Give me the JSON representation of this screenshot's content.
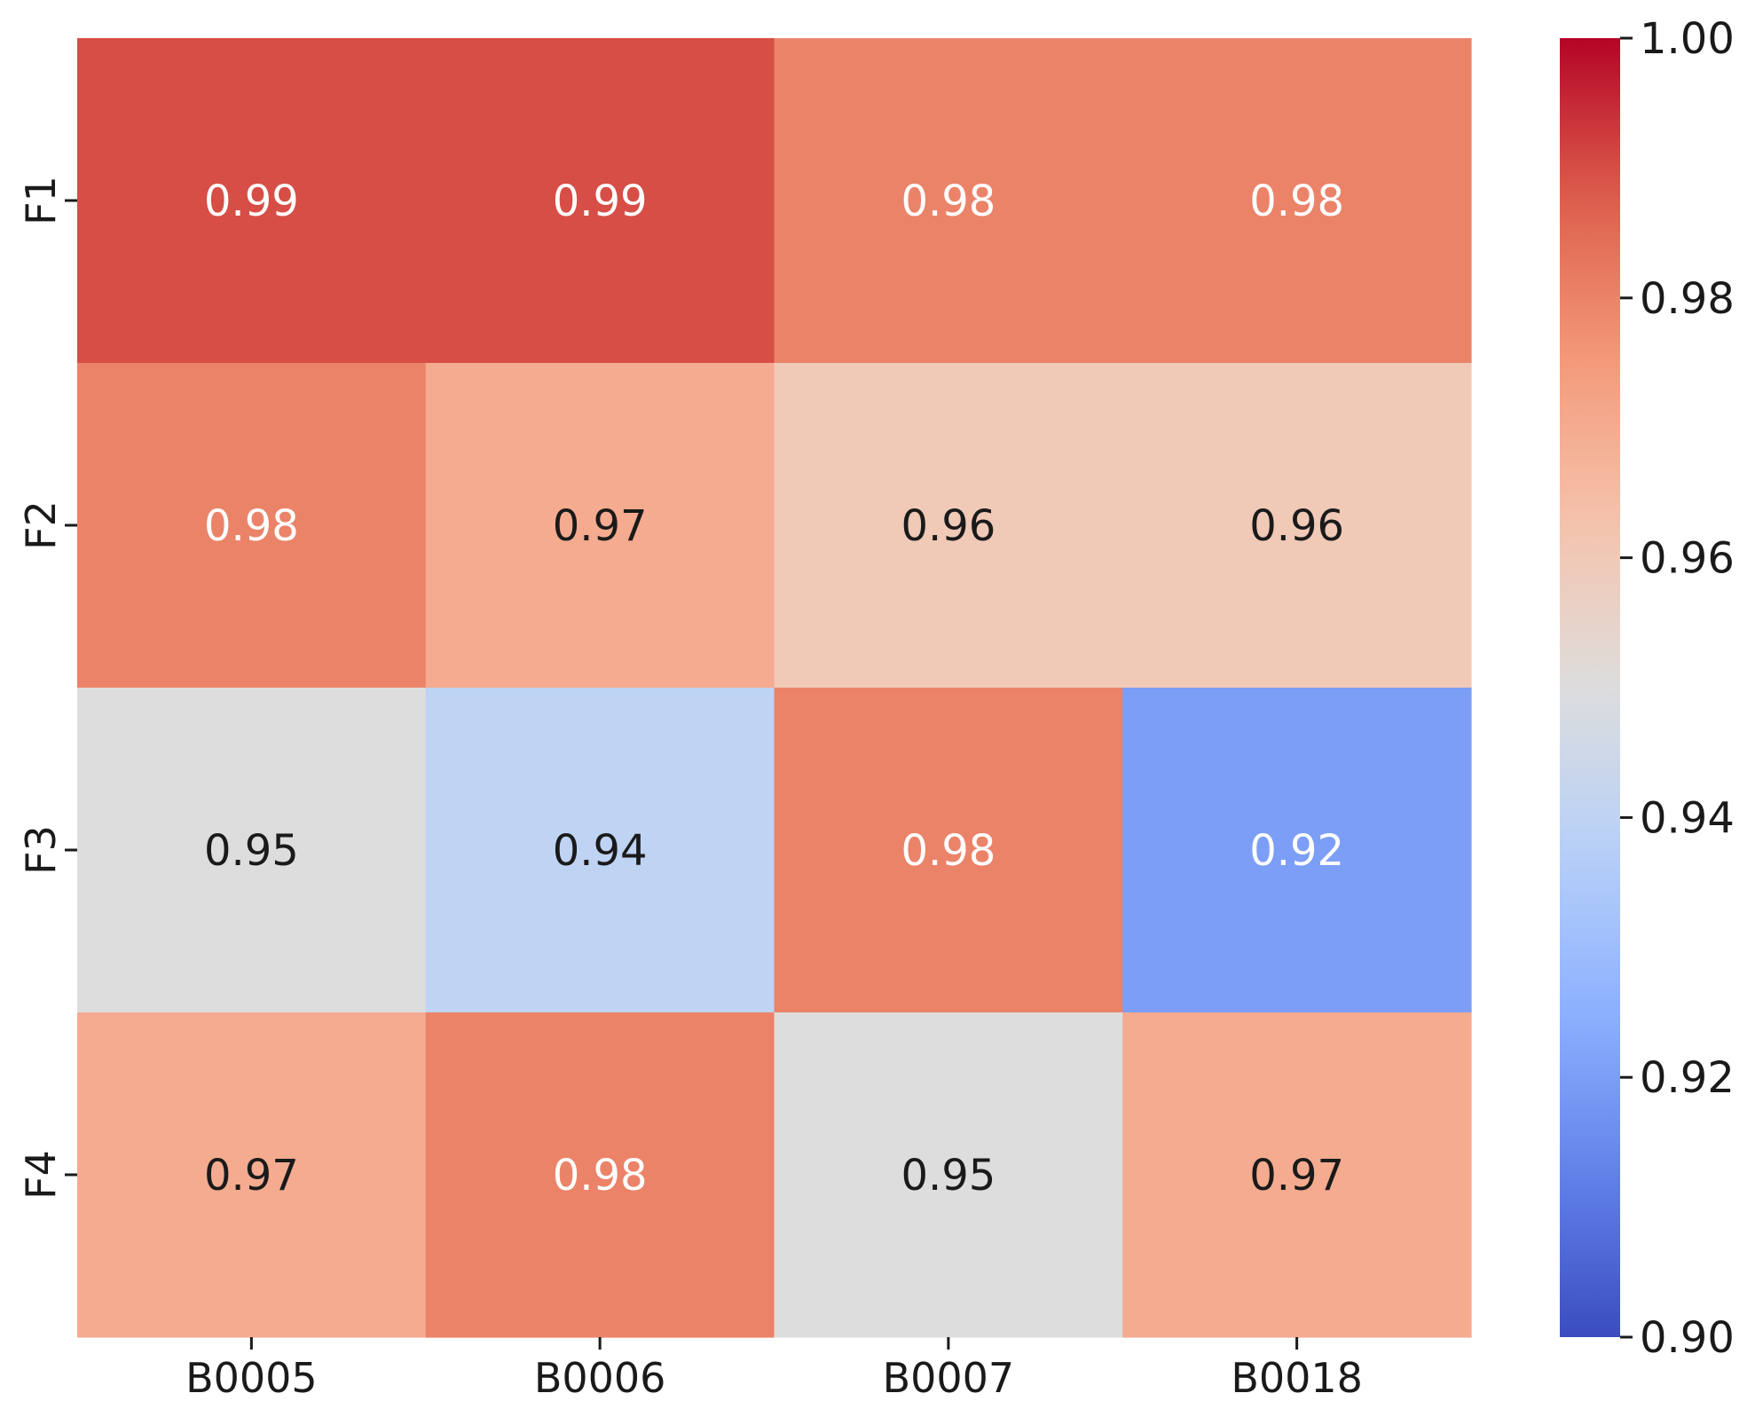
{
  "chart_data": {
    "type": "heatmap",
    "title": "",
    "xlabel": "",
    "ylabel": "",
    "columns": [
      "B0005",
      "B0006",
      "B0007",
      "B0018"
    ],
    "rows": [
      "F1",
      "F2",
      "F3",
      "F4"
    ],
    "values": [
      [
        0.99,
        0.99,
        0.98,
        0.98
      ],
      [
        0.98,
        0.97,
        0.96,
        0.96
      ],
      [
        0.95,
        0.94,
        0.98,
        0.92
      ],
      [
        0.97,
        0.98,
        0.95,
        0.97
      ]
    ],
    "cell_text": [
      [
        "0.99",
        "0.99",
        "0.98",
        "0.98"
      ],
      [
        "0.98",
        "0.97",
        "0.96",
        "0.96"
      ],
      [
        "0.95",
        "0.94",
        "0.98",
        "0.92"
      ],
      [
        "0.97",
        "0.98",
        "0.95",
        "0.97"
      ]
    ],
    "colormap": "coolwarm",
    "vmin": 0.9,
    "vmax": 1.0,
    "colorbar_ticks": [
      0.9,
      0.92,
      0.94,
      0.96,
      0.98,
      1.0
    ],
    "colorbar_tick_labels": [
      "0.90",
      "0.92",
      "0.94",
      "0.96",
      "0.98",
      "1.00"
    ],
    "colorbar_position": "right",
    "legend": "colorbar",
    "grid": false
  }
}
